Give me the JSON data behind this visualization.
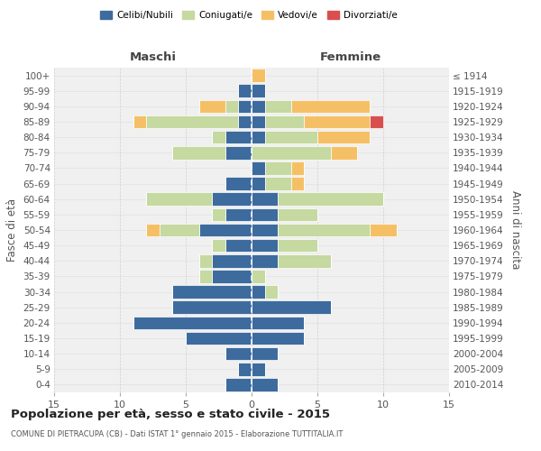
{
  "age_groups": [
    "0-4",
    "5-9",
    "10-14",
    "15-19",
    "20-24",
    "25-29",
    "30-34",
    "35-39",
    "40-44",
    "45-49",
    "50-54",
    "55-59",
    "60-64",
    "65-69",
    "70-74",
    "75-79",
    "80-84",
    "85-89",
    "90-94",
    "95-99",
    "100+"
  ],
  "birth_years": [
    "2010-2014",
    "2005-2009",
    "2000-2004",
    "1995-1999",
    "1990-1994",
    "1985-1989",
    "1980-1984",
    "1975-1979",
    "1970-1974",
    "1965-1969",
    "1960-1964",
    "1955-1959",
    "1950-1954",
    "1945-1949",
    "1940-1944",
    "1935-1939",
    "1930-1934",
    "1925-1929",
    "1920-1924",
    "1915-1919",
    "≤ 1914"
  ],
  "maschi": {
    "celibi": [
      2,
      1,
      2,
      5,
      9,
      6,
      6,
      3,
      3,
      2,
      4,
      2,
      3,
      2,
      0,
      2,
      2,
      1,
      1,
      1,
      0
    ],
    "coniugati": [
      0,
      0,
      0,
      0,
      0,
      0,
      0,
      1,
      1,
      1,
      3,
      1,
      5,
      0,
      0,
      4,
      1,
      7,
      1,
      0,
      0
    ],
    "vedovi": [
      0,
      0,
      0,
      0,
      0,
      0,
      0,
      0,
      0,
      0,
      1,
      0,
      0,
      0,
      0,
      0,
      0,
      1,
      2,
      0,
      0
    ],
    "divorziati": [
      0,
      0,
      0,
      0,
      0,
      0,
      0,
      0,
      0,
      0,
      0,
      0,
      0,
      0,
      0,
      0,
      0,
      0,
      0,
      0,
      0
    ]
  },
  "femmine": {
    "celibi": [
      2,
      1,
      2,
      4,
      4,
      6,
      1,
      0,
      2,
      2,
      2,
      2,
      2,
      1,
      1,
      0,
      1,
      1,
      1,
      1,
      0
    ],
    "coniugati": [
      0,
      0,
      0,
      0,
      0,
      0,
      1,
      1,
      4,
      3,
      7,
      3,
      8,
      2,
      2,
      6,
      4,
      3,
      2,
      0,
      0
    ],
    "vedovi": [
      0,
      0,
      0,
      0,
      0,
      0,
      0,
      0,
      0,
      0,
      2,
      0,
      0,
      1,
      1,
      2,
      4,
      5,
      6,
      0,
      1
    ],
    "divorziati": [
      0,
      0,
      0,
      0,
      0,
      0,
      0,
      0,
      0,
      0,
      0,
      0,
      0,
      0,
      0,
      0,
      0,
      1,
      0,
      0,
      0
    ]
  },
  "colors": {
    "celibi": "#3d6b9e",
    "coniugati": "#c5d9a0",
    "vedovi": "#f5c065",
    "divorziati": "#d94f4f"
  },
  "legend_labels": [
    "Celibi/Nubili",
    "Coniugati/e",
    "Vedovi/e",
    "Divorziati/e"
  ],
  "title": "Popolazione per età, sesso e stato civile - 2015",
  "subtitle": "COMUNE DI PIETRACUPA (CB) - Dati ISTAT 1° gennaio 2015 - Elaborazione TUTTITALIA.IT",
  "xlabel_left": "Maschi",
  "xlabel_right": "Femmine",
  "ylabel_left": "Fasce di età",
  "ylabel_right": "Anni di nascita",
  "xlim": 15,
  "background_color": "#f0f0f0"
}
